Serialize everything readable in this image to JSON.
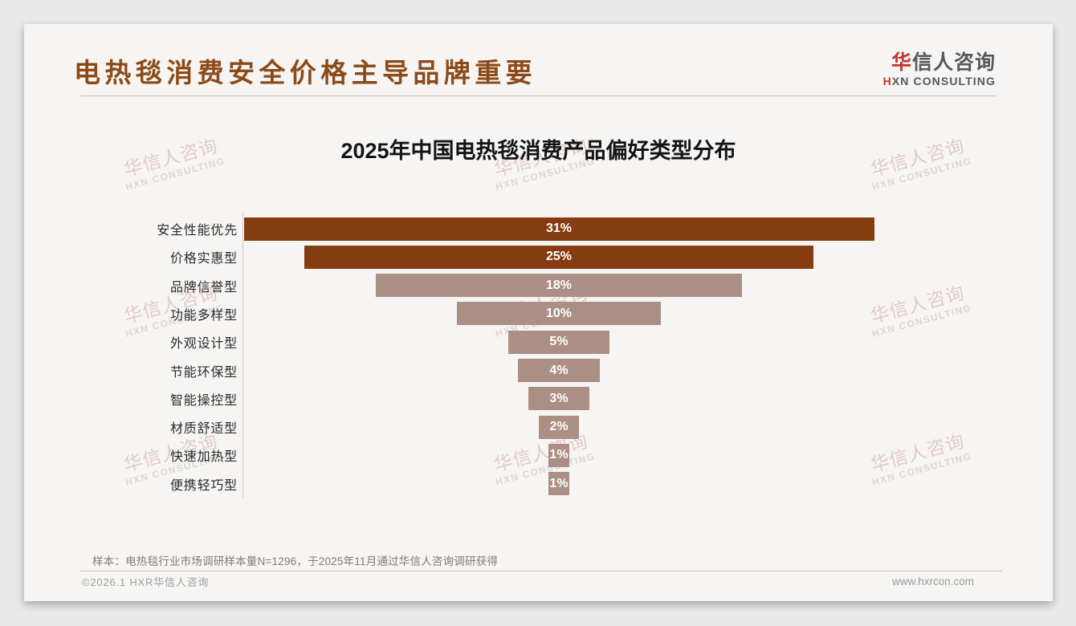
{
  "header": {
    "title": "电热毯消费安全价格主导品牌重要",
    "logo": {
      "zh_accent": "华",
      "zh_rest": "信人咨询",
      "en_accent": "H",
      "en_rest": "XN CONSULTING"
    }
  },
  "chart_data": {
    "type": "bar",
    "variant": "centered-funnel-horizontal",
    "title": "2025年中国电热毯消费产品偏好类型分布",
    "categories": [
      "安全性能优先",
      "价格实惠型",
      "品牌信誉型",
      "功能多样型",
      "外观设计型",
      "节能环保型",
      "智能操控型",
      "材质舒适型",
      "快速加热型",
      "便携轻巧型"
    ],
    "values": [
      31,
      25,
      18,
      10,
      5,
      4,
      3,
      2,
      1,
      1
    ],
    "labels": [
      "31%",
      "25%",
      "18%",
      "10%",
      "5%",
      "4%",
      "3%",
      "2%",
      "1%",
      "1%"
    ],
    "unit": "%",
    "xlim": [
      0,
      31
    ],
    "grid": false,
    "legend": false,
    "colors": {
      "highlight": "#843C10",
      "normal": "#AB8E84"
    },
    "highlight_count": 2,
    "label_color": "#ffffff"
  },
  "watermark": {
    "line1": "华信人咨询",
    "line2": "HXN CONSULTING"
  },
  "footnote": "样本：电热毯行业市场调研样本量N=1296，于2025年11月通过华信人咨询调研获得",
  "footer": {
    "left": "©2026.1 HXR华信人咨询",
    "right": "www.hxrcon.com"
  },
  "colors": {
    "page_background": "#e9e9e9",
    "card_background": "#f6f5f3",
    "title": "#8C4A18",
    "logo_accent": "#C5342B",
    "logo_text": "#57585A"
  }
}
